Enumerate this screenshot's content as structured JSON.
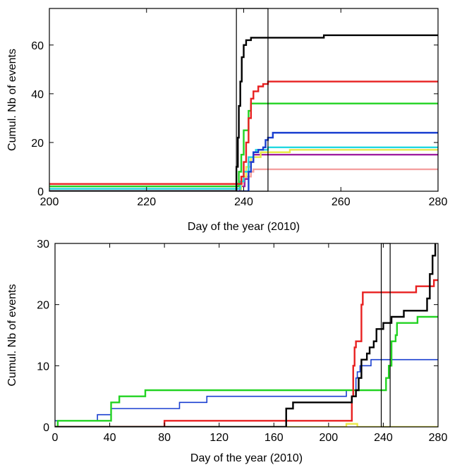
{
  "chart_data": [
    {
      "type": "line",
      "step": true,
      "xlabel": "Day of the year (2010)",
      "ylabel": "Cumul. Nb of events",
      "xlim": [
        200,
        280
      ],
      "ylim": [
        0,
        75
      ],
      "xticks": [
        200,
        220,
        240,
        260,
        280
      ],
      "yticks": [
        0,
        20,
        40,
        60
      ],
      "grid": false,
      "legend": "none",
      "highlight_window": [
        238.5,
        245
      ],
      "series": [
        {
          "color": "#f4a0a0",
          "points": [
            [
              200,
              2
            ],
            [
              238.5,
              2
            ],
            [
              239,
              3
            ],
            [
              239.8,
              5
            ],
            [
              240.5,
              6
            ],
            [
              241.5,
              8
            ],
            [
              242,
              9
            ],
            [
              280,
              9
            ]
          ]
        },
        {
          "color": "#a020a0",
          "points": [
            [
              200,
              0
            ],
            [
              238.7,
              0
            ],
            [
              239.2,
              2
            ],
            [
              240.2,
              5
            ],
            [
              241,
              12
            ],
            [
              242,
              15
            ],
            [
              280,
              15
            ]
          ]
        },
        {
          "color": "#e8e84a",
          "points": [
            [
              200,
              0
            ],
            [
              238.8,
              0
            ],
            [
              239.5,
              6
            ],
            [
              240.5,
              10
            ],
            [
              241.5,
              14
            ],
            [
              243.5,
              16
            ],
            [
              249,
              16
            ],
            [
              249.5,
              17
            ],
            [
              280,
              17
            ]
          ]
        },
        {
          "color": "#22d8e0",
          "points": [
            [
              200,
              1
            ],
            [
              238.8,
              1
            ],
            [
              239.3,
              4
            ],
            [
              240,
              8
            ],
            [
              241,
              14
            ],
            [
              242,
              16
            ],
            [
              242.5,
              17
            ],
            [
              244,
              17
            ],
            [
              245,
              18
            ],
            [
              280,
              18
            ]
          ]
        },
        {
          "color": "#1a3fd0",
          "points": [
            [
              200,
              0
            ],
            [
              240.5,
              0
            ],
            [
              241,
              8
            ],
            [
              241.5,
              12
            ],
            [
              242,
              16
            ],
            [
              243,
              17
            ],
            [
              244,
              18
            ],
            [
              244.5,
              21
            ],
            [
              245,
              22
            ],
            [
              246,
              24
            ],
            [
              280,
              24
            ]
          ]
        },
        {
          "color": "#22d322",
          "points": [
            [
              200,
              2
            ],
            [
              238.6,
              2
            ],
            [
              239,
              8
            ],
            [
              239.5,
              15
            ],
            [
              240,
              25
            ],
            [
              241,
              33
            ],
            [
              241.5,
              36
            ],
            [
              280,
              36
            ]
          ]
        },
        {
          "color": "#e82020",
          "points": [
            [
              200,
              3
            ],
            [
              239,
              3
            ],
            [
              239.5,
              6
            ],
            [
              240,
              12
            ],
            [
              240.5,
              20
            ],
            [
              241,
              30
            ],
            [
              241.5,
              38
            ],
            [
              242,
              41
            ],
            [
              243,
              43
            ],
            [
              244,
              44
            ],
            [
              245,
              45
            ],
            [
              280,
              45
            ]
          ]
        },
        {
          "color": "#000000",
          "points": [
            [
              200,
              0
            ],
            [
              238.3,
              0
            ],
            [
              238.5,
              10
            ],
            [
              238.8,
              22
            ],
            [
              239,
              35
            ],
            [
              239.3,
              45
            ],
            [
              239.6,
              55
            ],
            [
              240,
              60
            ],
            [
              240.5,
              62
            ],
            [
              241.5,
              63
            ],
            [
              256,
              63
            ],
            [
              256.5,
              64
            ],
            [
              280,
              64
            ]
          ]
        }
      ]
    },
    {
      "type": "line",
      "step": true,
      "xlabel": "Day of the year (2010)",
      "ylabel": "Cumul. Nb of events",
      "xlim": [
        0,
        280
      ],
      "ylim": [
        0,
        30
      ],
      "xticks": [
        0,
        40,
        80,
        120,
        160,
        200,
        240,
        280
      ],
      "yticks": [
        0,
        10,
        20,
        30
      ],
      "grid": false,
      "legend": "none",
      "highlight_window": [
        238.5,
        245
      ],
      "series": [
        {
          "color": "#e8e84a",
          "points": [
            [
              0,
              0
            ],
            [
              212,
              0
            ],
            [
              213,
              0.5
            ],
            [
              220,
              0.5
            ],
            [
              221,
              0
            ],
            [
              280,
              0
            ]
          ]
        },
        {
          "color": "#1a3fd0",
          "points": [
            [
              0,
              1
            ],
            [
              30,
              1
            ],
            [
              31,
              2
            ],
            [
              40,
              2
            ],
            [
              41,
              3
            ],
            [
              90,
              3
            ],
            [
              91,
              4
            ],
            [
              110,
              4
            ],
            [
              111,
              5
            ],
            [
              200,
              5
            ],
            [
              212,
              5
            ],
            [
              213,
              6
            ],
            [
              218,
              6
            ],
            [
              220,
              8
            ],
            [
              221,
              9
            ],
            [
              223,
              10
            ],
            [
              229,
              10
            ],
            [
              231,
              11
            ],
            [
              280,
              11
            ]
          ]
        },
        {
          "color": "#22d322",
          "points": [
            [
              0,
              0
            ],
            [
              1,
              0
            ],
            [
              2,
              1
            ],
            [
              38,
              1
            ],
            [
              41,
              4
            ],
            [
              46,
              4
            ],
            [
              47,
              5
            ],
            [
              64,
              5
            ],
            [
              66,
              6
            ],
            [
              215,
              6
            ],
            [
              219,
              6
            ],
            [
              241,
              6
            ],
            [
              242,
              8
            ],
            [
              244,
              10
            ],
            [
              246,
              14
            ],
            [
              249,
              15
            ],
            [
              250,
              17
            ],
            [
              264,
              17
            ],
            [
              265,
              18
            ],
            [
              280,
              18
            ]
          ]
        },
        {
          "color": "#e82020",
          "points": [
            [
              0,
              0
            ],
            [
              79,
              0
            ],
            [
              80,
              1
            ],
            [
              216,
              1
            ],
            [
              217,
              5
            ],
            [
              218,
              10
            ],
            [
              219,
              13
            ],
            [
              220,
              14
            ],
            [
              223,
              14
            ],
            [
              224,
              20
            ],
            [
              225,
              22
            ],
            [
              263,
              22
            ],
            [
              264,
              23
            ],
            [
              276,
              23
            ],
            [
              277,
              24
            ],
            [
              280,
              24
            ]
          ]
        },
        {
          "color": "#000000",
          "points": [
            [
              0,
              0
            ],
            [
              167,
              0
            ],
            [
              169,
              3
            ],
            [
              173,
              3
            ],
            [
              174,
              4
            ],
            [
              216,
              4
            ],
            [
              217,
              5
            ],
            [
              220,
              6
            ],
            [
              222,
              8
            ],
            [
              224,
              11
            ],
            [
              227,
              11
            ],
            [
              228,
              12
            ],
            [
              230,
              13
            ],
            [
              233,
              14
            ],
            [
              235,
              16
            ],
            [
              240,
              17
            ],
            [
              246,
              18
            ],
            [
              254,
              18
            ],
            [
              255,
              19
            ],
            [
              270,
              19
            ],
            [
              272,
              21
            ],
            [
              274,
              25
            ],
            [
              276,
              28
            ],
            [
              278,
              30
            ]
          ]
        }
      ]
    }
  ]
}
